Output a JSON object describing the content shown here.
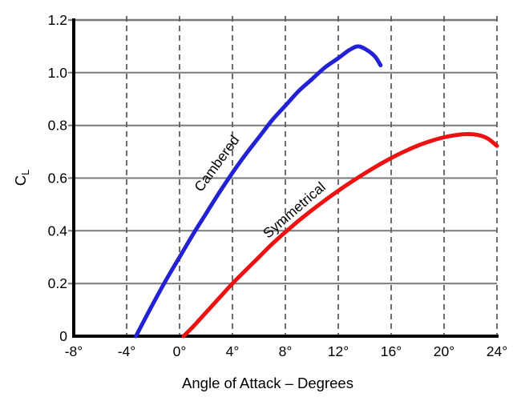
{
  "figure": {
    "background": "#ffffff",
    "axis_color": "#000000",
    "grid_h_color": "#787878",
    "grid_v_color": "#5e5e5e"
  },
  "chart_data": {
    "type": "line",
    "title": "",
    "xlabel": "Angle of Attack – Degrees",
    "ylabel": {
      "main": "C",
      "sub": "L"
    },
    "xlim": [
      -8,
      24
    ],
    "ylim": [
      0,
      1.2
    ],
    "x_ticks": [
      -8,
      -4,
      0,
      4,
      8,
      12,
      16,
      20,
      24
    ],
    "x_tick_labels": [
      "-8°",
      "-4°",
      "0°",
      "4°",
      "8°",
      "12°",
      "16°",
      "20°",
      "24°"
    ],
    "y_ticks": [
      0,
      0.2,
      0.4,
      0.6,
      0.8,
      1.0,
      1.2
    ],
    "y_tick_labels": [
      "0",
      "0.2",
      "0.4",
      "0.6",
      "0.8",
      "1.0",
      "1.2"
    ],
    "grid": {
      "horizontal": "solid",
      "vertical": "dashed"
    },
    "legend_position": "inline-curve-labels",
    "series": [
      {
        "name": "Cambered",
        "color": "#2222d4",
        "label": {
          "x": 3.1,
          "y": 0.645,
          "rotation": -54
        },
        "points": [
          [
            -3.3,
            0
          ],
          [
            -2.2,
            0.105
          ],
          [
            -1,
            0.215
          ],
          [
            0,
            0.3
          ],
          [
            1,
            0.385
          ],
          [
            2,
            0.465
          ],
          [
            3,
            0.545
          ],
          [
            4,
            0.62
          ],
          [
            5,
            0.69
          ],
          [
            6,
            0.755
          ],
          [
            7,
            0.82
          ],
          [
            8,
            0.875
          ],
          [
            9,
            0.93
          ],
          [
            10,
            0.975
          ],
          [
            11,
            1.02
          ],
          [
            12,
            1.055
          ],
          [
            12.8,
            1.085
          ],
          [
            13.5,
            1.1
          ],
          [
            14.2,
            1.085
          ],
          [
            14.8,
            1.06
          ],
          [
            15.2,
            1.028
          ]
        ]
      },
      {
        "name": "Symmetrical",
        "color": "#ee1111",
        "label": {
          "x": 8.9,
          "y": 0.465,
          "rotation": -41
        },
        "points": [
          [
            0.3,
            0
          ],
          [
            1,
            0.035
          ],
          [
            2,
            0.09
          ],
          [
            3,
            0.145
          ],
          [
            4,
            0.2
          ],
          [
            5,
            0.25
          ],
          [
            6,
            0.3
          ],
          [
            7,
            0.35
          ],
          [
            8,
            0.395
          ],
          [
            9,
            0.438
          ],
          [
            10,
            0.478
          ],
          [
            11,
            0.516
          ],
          [
            12,
            0.552
          ],
          [
            13,
            0.586
          ],
          [
            14,
            0.618
          ],
          [
            15,
            0.648
          ],
          [
            16,
            0.676
          ],
          [
            17,
            0.701
          ],
          [
            18,
            0.723
          ],
          [
            19,
            0.741
          ],
          [
            20,
            0.755
          ],
          [
            21,
            0.764
          ],
          [
            21.8,
            0.767
          ],
          [
            22.6,
            0.763
          ],
          [
            23.3,
            0.75
          ],
          [
            24,
            0.722
          ]
        ]
      }
    ]
  }
}
